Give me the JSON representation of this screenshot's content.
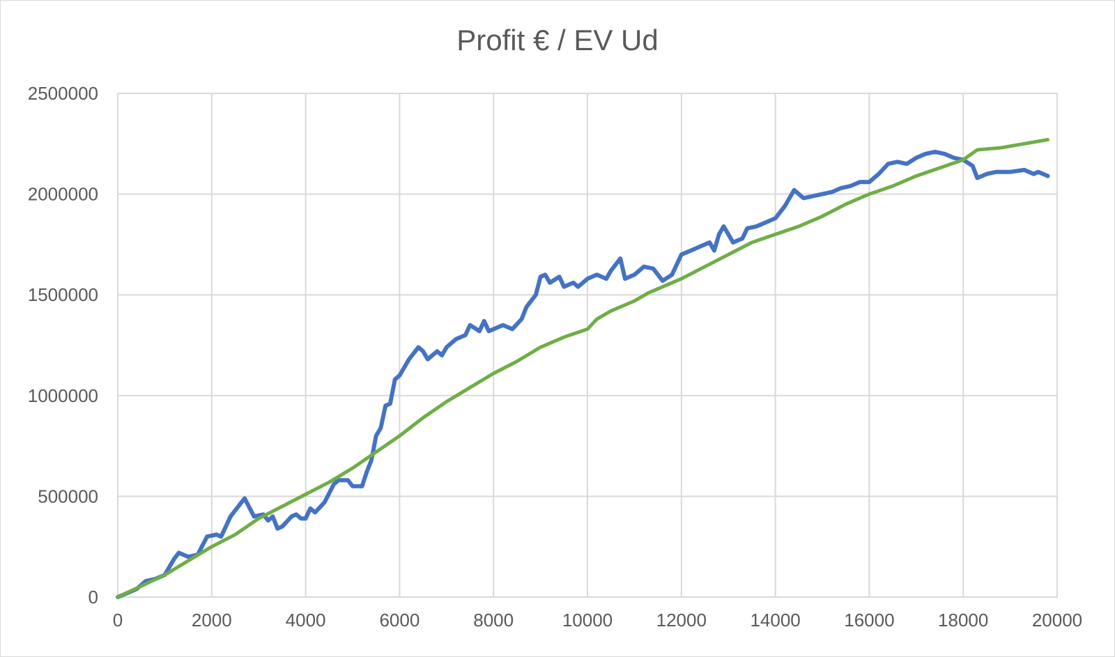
{
  "chart_data": {
    "type": "line",
    "title": "Profit € / EV Ud",
    "xlabel": "",
    "ylabel": "",
    "xlim": [
      0,
      20000
    ],
    "ylim": [
      0,
      2500000
    ],
    "x_ticks": [
      "0",
      "2000",
      "4000",
      "6000",
      "8000",
      "10000",
      "12000",
      "14000",
      "16000",
      "18000",
      "20000"
    ],
    "y_ticks": [
      "0",
      "500000",
      "1000000",
      "1500000",
      "2000000",
      "2500000"
    ],
    "grid": true,
    "legend": "none",
    "series": [
      {
        "color": "#4472c4",
        "points": [
          [
            0,
            0
          ],
          [
            200,
            20000
          ],
          [
            400,
            40000
          ],
          [
            600,
            80000
          ],
          [
            800,
            90000
          ],
          [
            1000,
            110000
          ],
          [
            1200,
            190000
          ],
          [
            1300,
            220000
          ],
          [
            1500,
            200000
          ],
          [
            1700,
            210000
          ],
          [
            1900,
            300000
          ],
          [
            2100,
            310000
          ],
          [
            2200,
            300000
          ],
          [
            2400,
            400000
          ],
          [
            2600,
            460000
          ],
          [
            2700,
            490000
          ],
          [
            2900,
            400000
          ],
          [
            3100,
            410000
          ],
          [
            3200,
            380000
          ],
          [
            3300,
            400000
          ],
          [
            3400,
            340000
          ],
          [
            3500,
            350000
          ],
          [
            3700,
            400000
          ],
          [
            3800,
            410000
          ],
          [
            3900,
            390000
          ],
          [
            4000,
            390000
          ],
          [
            4100,
            440000
          ],
          [
            4200,
            420000
          ],
          [
            4400,
            470000
          ],
          [
            4600,
            560000
          ],
          [
            4700,
            580000
          ],
          [
            4900,
            580000
          ],
          [
            5000,
            550000
          ],
          [
            5200,
            550000
          ],
          [
            5300,
            620000
          ],
          [
            5400,
            680000
          ],
          [
            5500,
            800000
          ],
          [
            5600,
            840000
          ],
          [
            5700,
            950000
          ],
          [
            5800,
            960000
          ],
          [
            5900,
            1080000
          ],
          [
            6000,
            1100000
          ],
          [
            6200,
            1180000
          ],
          [
            6400,
            1240000
          ],
          [
            6500,
            1220000
          ],
          [
            6600,
            1180000
          ],
          [
            6800,
            1220000
          ],
          [
            6900,
            1200000
          ],
          [
            7000,
            1240000
          ],
          [
            7200,
            1280000
          ],
          [
            7400,
            1300000
          ],
          [
            7500,
            1350000
          ],
          [
            7700,
            1320000
          ],
          [
            7800,
            1370000
          ],
          [
            7900,
            1320000
          ],
          [
            8000,
            1330000
          ],
          [
            8200,
            1350000
          ],
          [
            8400,
            1330000
          ],
          [
            8600,
            1380000
          ],
          [
            8700,
            1440000
          ],
          [
            8900,
            1500000
          ],
          [
            9000,
            1590000
          ],
          [
            9100,
            1600000
          ],
          [
            9200,
            1560000
          ],
          [
            9400,
            1590000
          ],
          [
            9500,
            1540000
          ],
          [
            9700,
            1560000
          ],
          [
            9800,
            1540000
          ],
          [
            10000,
            1580000
          ],
          [
            10200,
            1600000
          ],
          [
            10400,
            1580000
          ],
          [
            10500,
            1620000
          ],
          [
            10700,
            1680000
          ],
          [
            10800,
            1580000
          ],
          [
            11000,
            1600000
          ],
          [
            11200,
            1640000
          ],
          [
            11400,
            1630000
          ],
          [
            11600,
            1570000
          ],
          [
            11800,
            1600000
          ],
          [
            12000,
            1700000
          ],
          [
            12200,
            1720000
          ],
          [
            12400,
            1740000
          ],
          [
            12600,
            1760000
          ],
          [
            12700,
            1720000
          ],
          [
            12800,
            1800000
          ],
          [
            12900,
            1840000
          ],
          [
            13000,
            1800000
          ],
          [
            13100,
            1760000
          ],
          [
            13300,
            1780000
          ],
          [
            13400,
            1830000
          ],
          [
            13600,
            1840000
          ],
          [
            13800,
            1860000
          ],
          [
            14000,
            1880000
          ],
          [
            14200,
            1940000
          ],
          [
            14400,
            2020000
          ],
          [
            14600,
            1980000
          ],
          [
            14800,
            1990000
          ],
          [
            15000,
            2000000
          ],
          [
            15200,
            2010000
          ],
          [
            15400,
            2030000
          ],
          [
            15600,
            2040000
          ],
          [
            15800,
            2060000
          ],
          [
            16000,
            2060000
          ],
          [
            16200,
            2100000
          ],
          [
            16400,
            2150000
          ],
          [
            16600,
            2160000
          ],
          [
            16800,
            2150000
          ],
          [
            17000,
            2180000
          ],
          [
            17200,
            2200000
          ],
          [
            17400,
            2210000
          ],
          [
            17600,
            2200000
          ],
          [
            17800,
            2180000
          ],
          [
            18000,
            2170000
          ],
          [
            18200,
            2140000
          ],
          [
            18300,
            2080000
          ],
          [
            18500,
            2100000
          ],
          [
            18700,
            2110000
          ],
          [
            19000,
            2110000
          ],
          [
            19300,
            2120000
          ],
          [
            19500,
            2100000
          ],
          [
            19600,
            2110000
          ],
          [
            19800,
            2090000
          ]
        ]
      },
      {
        "color": "#70ad47",
        "points": [
          [
            0,
            0
          ],
          [
            500,
            55000
          ],
          [
            1000,
            110000
          ],
          [
            1500,
            180000
          ],
          [
            2000,
            250000
          ],
          [
            2500,
            310000
          ],
          [
            3000,
            390000
          ],
          [
            3500,
            450000
          ],
          [
            4000,
            510000
          ],
          [
            4500,
            570000
          ],
          [
            5000,
            640000
          ],
          [
            5500,
            720000
          ],
          [
            6000,
            800000
          ],
          [
            6500,
            890000
          ],
          [
            7000,
            970000
          ],
          [
            7500,
            1040000
          ],
          [
            8000,
            1110000
          ],
          [
            8500,
            1170000
          ],
          [
            9000,
            1240000
          ],
          [
            9500,
            1290000
          ],
          [
            10000,
            1330000
          ],
          [
            10200,
            1380000
          ],
          [
            10500,
            1420000
          ],
          [
            11000,
            1470000
          ],
          [
            11300,
            1510000
          ],
          [
            12000,
            1580000
          ],
          [
            12500,
            1640000
          ],
          [
            13000,
            1700000
          ],
          [
            13500,
            1760000
          ],
          [
            14000,
            1800000
          ],
          [
            14500,
            1840000
          ],
          [
            15000,
            1890000
          ],
          [
            15500,
            1950000
          ],
          [
            16000,
            2000000
          ],
          [
            16500,
            2040000
          ],
          [
            17000,
            2090000
          ],
          [
            17500,
            2130000
          ],
          [
            18000,
            2170000
          ],
          [
            18300,
            2220000
          ],
          [
            18800,
            2230000
          ],
          [
            19300,
            2250000
          ],
          [
            19800,
            2270000
          ]
        ]
      }
    ]
  }
}
